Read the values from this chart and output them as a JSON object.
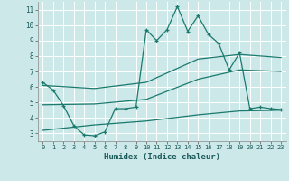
{
  "xlabel": "Humidex (Indice chaleur)",
  "bg_color": "#cce8e8",
  "grid_color": "#ffffff",
  "line_color": "#1a7a6e",
  "xlim": [
    -0.5,
    23.5
  ],
  "ylim": [
    2.5,
    11.5
  ],
  "xticks": [
    0,
    1,
    2,
    3,
    4,
    5,
    6,
    7,
    8,
    9,
    10,
    11,
    12,
    13,
    14,
    15,
    16,
    17,
    18,
    19,
    20,
    21,
    22,
    23
  ],
  "yticks": [
    3,
    4,
    5,
    6,
    7,
    8,
    9,
    10,
    11
  ],
  "main_line_x": [
    0,
    1,
    2,
    3,
    4,
    5,
    6,
    7,
    8,
    9,
    10,
    11,
    12,
    13,
    14,
    15,
    16,
    17,
    18,
    19,
    20,
    21,
    22,
    23
  ],
  "main_line_y": [
    6.3,
    5.8,
    4.8,
    3.5,
    2.9,
    2.85,
    3.1,
    4.6,
    4.6,
    4.7,
    9.7,
    9.0,
    9.7,
    11.2,
    9.6,
    10.6,
    9.4,
    8.8,
    7.1,
    8.2,
    4.6,
    4.7,
    4.6,
    4.55
  ],
  "upper_line_x": [
    0,
    5,
    10,
    15,
    19,
    23
  ],
  "upper_line_y": [
    6.1,
    5.9,
    6.3,
    7.8,
    8.1,
    7.9
  ],
  "lower_line_x": [
    0,
    5,
    10,
    15,
    19,
    23
  ],
  "lower_line_y": [
    4.85,
    4.9,
    5.2,
    6.5,
    7.1,
    7.0
  ],
  "bottom_line_x": [
    0,
    5,
    10,
    15,
    19,
    23
  ],
  "bottom_line_y": [
    3.2,
    3.55,
    3.8,
    4.2,
    4.45,
    4.5
  ]
}
